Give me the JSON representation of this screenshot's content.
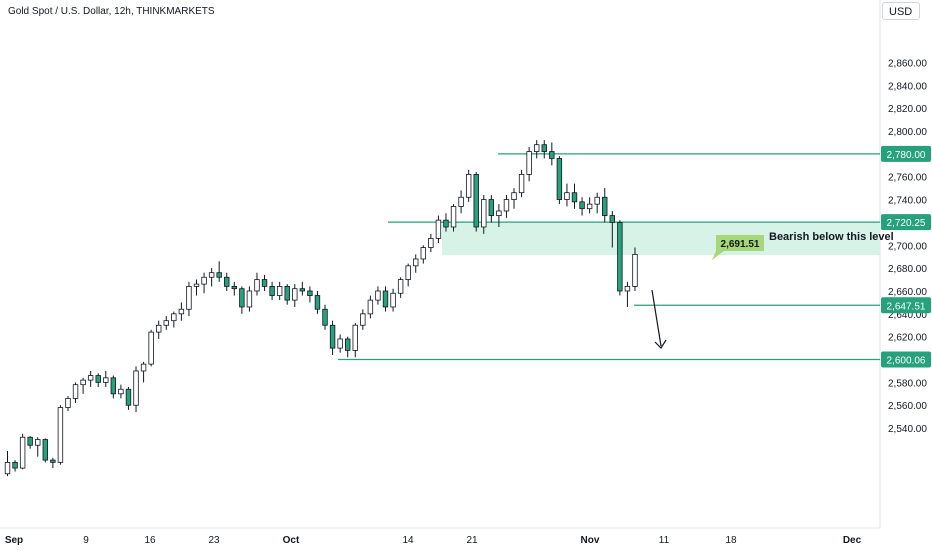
{
  "title": "Gold Spot / U.S. Dollar, 12h, THINKMARKETS",
  "currency_button": "USD",
  "colors": {
    "up": "#ffffff",
    "down": "#26a17c",
    "level": "#26a17c",
    "zone": "#d7f2e6",
    "callout": "#a7d877"
  },
  "chart_data": {
    "type": "candlestick",
    "y_axis": {
      "ticks": [
        2540,
        2560,
        2580,
        2600,
        2620,
        2640,
        2660,
        2680,
        2700,
        2720,
        2740,
        2760,
        2780,
        2800,
        2820,
        2840,
        2860
      ],
      "side": "right"
    },
    "x_axis": {
      "ticks": [
        "Sep",
        "9",
        "16",
        "23",
        "Oct",
        "14",
        "21",
        "Nov",
        "11",
        "18",
        "Dec"
      ]
    },
    "candles": [
      [
        2500,
        2520,
        2498,
        2510
      ],
      [
        2510,
        2512,
        2502,
        2505
      ],
      [
        2505,
        2535,
        2504,
        2532
      ],
      [
        2532,
        2533,
        2522,
        2525
      ],
      [
        2525,
        2532,
        2515,
        2530
      ],
      [
        2530,
        2531,
        2510,
        2512
      ],
      [
        2512,
        2514,
        2505,
        2510
      ],
      [
        2510,
        2560,
        2508,
        2558
      ],
      [
        2558,
        2568,
        2555,
        2566
      ],
      [
        2566,
        2580,
        2562,
        2578
      ],
      [
        2578,
        2584,
        2570,
        2582
      ],
      [
        2582,
        2590,
        2576,
        2586
      ],
      [
        2586,
        2588,
        2576,
        2580
      ],
      [
        2580,
        2590,
        2576,
        2584
      ],
      [
        2584,
        2586,
        2566,
        2570
      ],
      [
        2570,
        2578,
        2566,
        2574
      ],
      [
        2574,
        2576,
        2556,
        2560
      ],
      [
        2560,
        2594,
        2554,
        2590
      ],
      [
        2590,
        2598,
        2580,
        2596
      ],
      [
        2596,
        2626,
        2594,
        2624
      ],
      [
        2624,
        2634,
        2618,
        2630
      ],
      [
        2630,
        2638,
        2626,
        2634
      ],
      [
        2634,
        2642,
        2628,
        2640
      ],
      [
        2640,
        2650,
        2634,
        2644
      ],
      [
        2644,
        2668,
        2638,
        2664
      ],
      [
        2664,
        2670,
        2656,
        2666
      ],
      [
        2666,
        2676,
        2658,
        2672
      ],
      [
        2672,
        2680,
        2664,
        2676
      ],
      [
        2676,
        2686,
        2668,
        2672
      ],
      [
        2672,
        2676,
        2660,
        2664
      ],
      [
        2664,
        2668,
        2656,
        2662
      ],
      [
        2662,
        2664,
        2640,
        2646
      ],
      [
        2646,
        2664,
        2642,
        2660
      ],
      [
        2660,
        2676,
        2656,
        2670
      ],
      [
        2670,
        2674,
        2660,
        2664
      ],
      [
        2664,
        2668,
        2652,
        2656
      ],
      [
        2656,
        2668,
        2652,
        2664
      ],
      [
        2664,
        2666,
        2648,
        2652
      ],
      [
        2652,
        2666,
        2646,
        2662
      ],
      [
        2662,
        2668,
        2656,
        2660
      ],
      [
        2660,
        2664,
        2650,
        2656
      ],
      [
        2656,
        2660,
        2640,
        2644
      ],
      [
        2644,
        2648,
        2626,
        2630
      ],
      [
        2630,
        2634,
        2604,
        2610
      ],
      [
        2610,
        2622,
        2606,
        2618
      ],
      [
        2618,
        2620,
        2602,
        2608
      ],
      [
        2608,
        2632,
        2602,
        2630
      ],
      [
        2630,
        2644,
        2626,
        2640
      ],
      [
        2640,
        2656,
        2636,
        2652
      ],
      [
        2652,
        2664,
        2648,
        2660
      ],
      [
        2660,
        2664,
        2642,
        2646
      ],
      [
        2646,
        2662,
        2642,
        2658
      ],
      [
        2658,
        2672,
        2654,
        2670
      ],
      [
        2670,
        2684,
        2664,
        2682
      ],
      [
        2682,
        2692,
        2676,
        2688
      ],
      [
        2688,
        2700,
        2684,
        2698
      ],
      [
        2698,
        2710,
        2694,
        2706
      ],
      [
        2706,
        2726,
        2702,
        2722
      ],
      [
        2722,
        2728,
        2712,
        2716
      ],
      [
        2716,
        2736,
        2712,
        2734
      ],
      [
        2734,
        2748,
        2728,
        2742
      ],
      [
        2742,
        2766,
        2738,
        2762
      ],
      [
        2762,
        2764,
        2712,
        2716
      ],
      [
        2716,
        2744,
        2710,
        2740
      ],
      [
        2740,
        2744,
        2720,
        2726
      ],
      [
        2726,
        2736,
        2716,
        2730
      ],
      [
        2730,
        2744,
        2724,
        2740
      ],
      [
        2740,
        2750,
        2732,
        2746
      ],
      [
        2746,
        2766,
        2742,
        2762
      ],
      [
        2762,
        2786,
        2756,
        2782
      ],
      [
        2782,
        2792,
        2776,
        2788
      ],
      [
        2788,
        2792,
        2776,
        2782
      ],
      [
        2782,
        2790,
        2770,
        2776
      ],
      [
        2776,
        2778,
        2736,
        2740
      ],
      [
        2740,
        2754,
        2734,
        2746
      ],
      [
        2746,
        2754,
        2732,
        2738
      ],
      [
        2738,
        2742,
        2726,
        2732
      ],
      [
        2732,
        2742,
        2728,
        2736
      ],
      [
        2736,
        2746,
        2728,
        2742
      ],
      [
        2742,
        2750,
        2720,
        2726
      ],
      [
        2726,
        2730,
        2698,
        2720
      ],
      [
        2720,
        2722,
        2656,
        2660
      ],
      [
        2660,
        2668,
        2646,
        2664
      ],
      [
        2664,
        2698,
        2660,
        2692
      ]
    ],
    "levels": [
      {
        "value": 2780.0,
        "label": "2,780.00"
      },
      {
        "value": 2720.25,
        "label": "2,720.25"
      },
      {
        "value": 2647.51,
        "label": "2,647.51"
      },
      {
        "value": 2600.06,
        "label": "2,600.06"
      }
    ],
    "zone": {
      "from": 2691.51,
      "to": 2720.25
    },
    "callout": "2,691.51",
    "annotation": "Bearish below this level"
  }
}
